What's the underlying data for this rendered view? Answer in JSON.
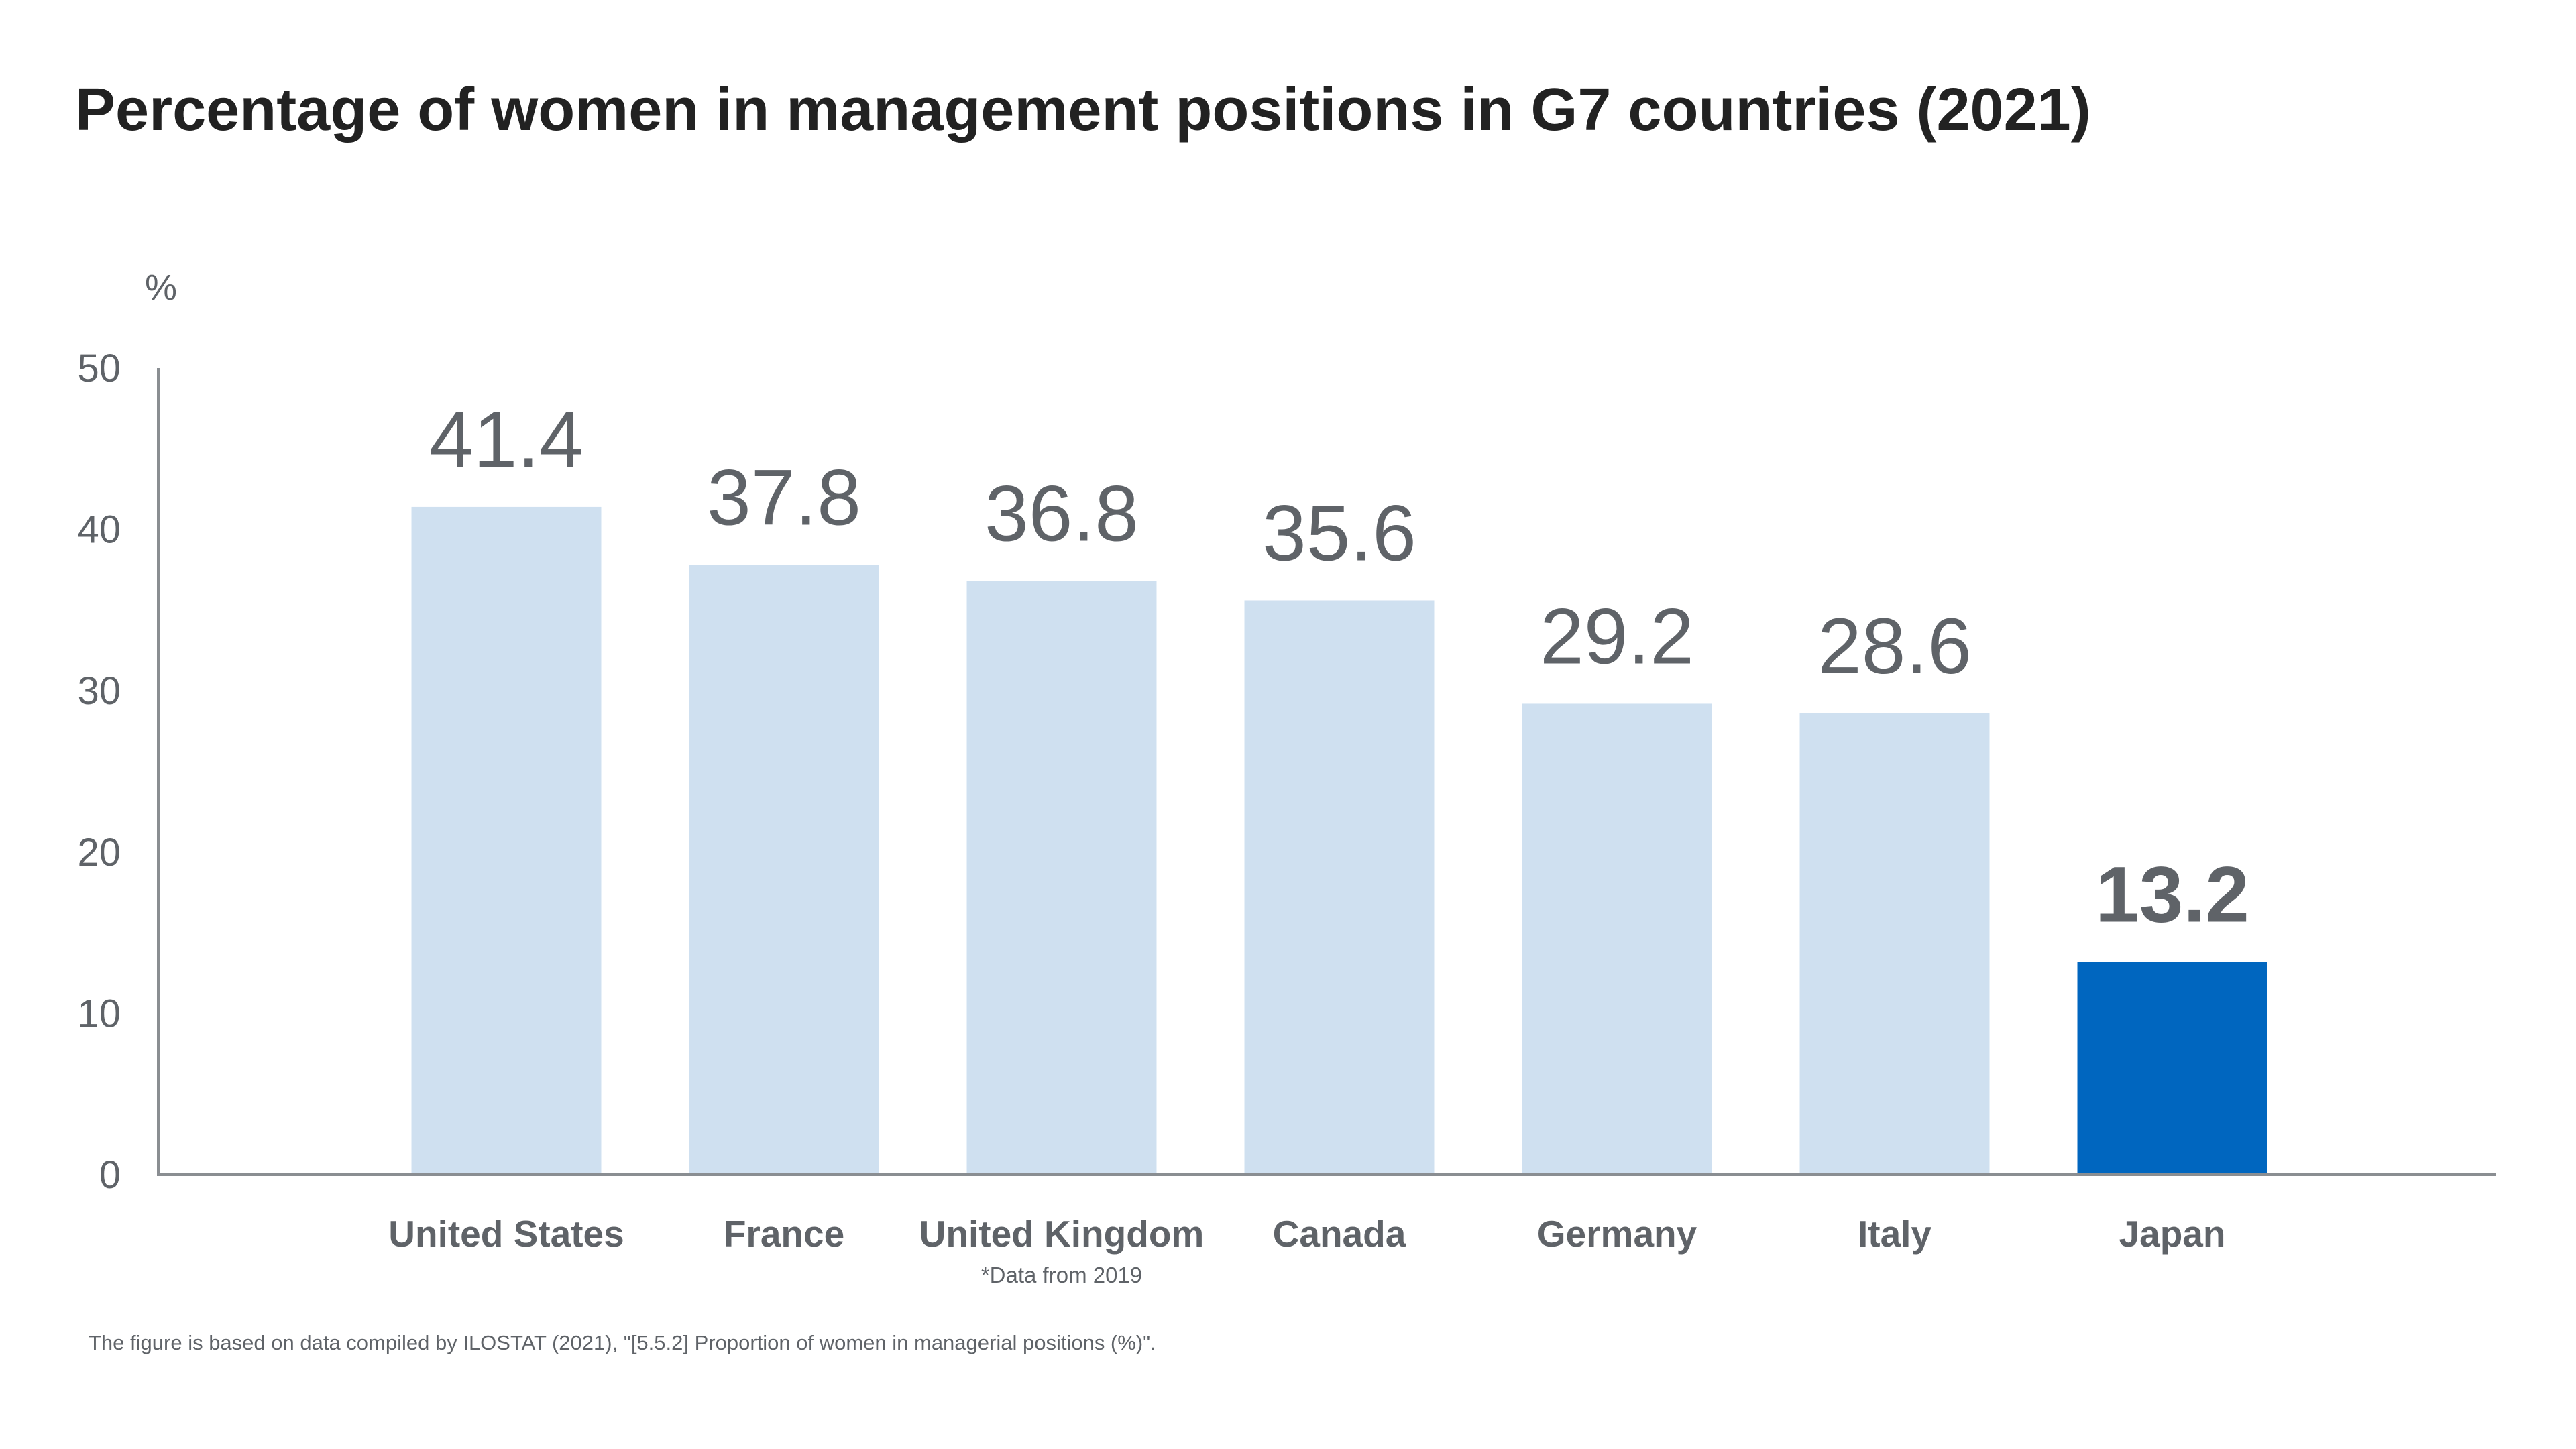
{
  "chart_data": {
    "type": "bar",
    "title": "Percentage of women in management positions in G7 countries (2021)",
    "ylabel": "%",
    "xlabel": "",
    "ylim": [
      0,
      50
    ],
    "yticks": [
      0,
      10,
      20,
      30,
      40,
      50
    ],
    "grid": false,
    "categories": [
      "United States",
      "France",
      "United Kingdom",
      "Canada",
      "Germany",
      "Italy",
      "Japan"
    ],
    "values": [
      41.4,
      37.8,
      36.8,
      35.6,
      29.2,
      28.6,
      13.2
    ],
    "value_labels": [
      "41.4",
      "37.8",
      "36.8",
      "35.6",
      "29.2",
      "28.6",
      "13.2"
    ],
    "highlight": "Japan",
    "annotations": [
      {
        "category": "United Kingdom",
        "text": "*Data from 2019"
      }
    ],
    "source": "The figure is based on data compiled by ILOSTAT (2021), \"[5.5.2] Proportion of women in managerial positions (%)\"."
  },
  "colors": {
    "bar": "#cfe0f0",
    "highlight": "#0066bf",
    "text": "#5f6368",
    "axis": "#8a8e92"
  }
}
